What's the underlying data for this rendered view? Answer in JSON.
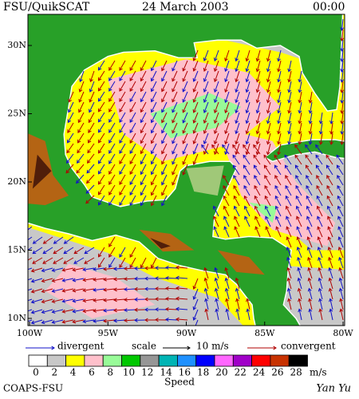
{
  "header": {
    "source": "FSU/QuikSCAT",
    "date": "24 March 2003",
    "time": "00:00"
  },
  "map": {
    "lat_labels": [
      "30N",
      "25N",
      "20N",
      "15N",
      "10N"
    ],
    "lon_labels": [
      "100W",
      "95W",
      "90W",
      "85W",
      "80W"
    ]
  },
  "legend": {
    "divergent": "divergent",
    "scale": "scale",
    "scale_value": "10 m/s",
    "convergent": "convergent",
    "divergent_color": "#1010c8",
    "convergent_color": "#b00000"
  },
  "colorbar": {
    "title": "Speed",
    "unit": "m/s",
    "labels": [
      "0",
      "2",
      "4",
      "6",
      "8",
      "10",
      "12",
      "14",
      "16",
      "18",
      "20",
      "22",
      "24",
      "26",
      "28"
    ],
    "colors": [
      "#ffffff",
      "#c8c8c8",
      "#ffff00",
      "#ffc0cb",
      "#98fb98",
      "#00c800",
      "#969696",
      "#00b4b4",
      "#1e90ff",
      "#0000ff",
      "#ff66ff",
      "#a000c8",
      "#ff0000",
      "#c83200",
      "#000000"
    ]
  },
  "footer": {
    "left": "COAPS-FSU",
    "right": "Yan Yu"
  }
}
